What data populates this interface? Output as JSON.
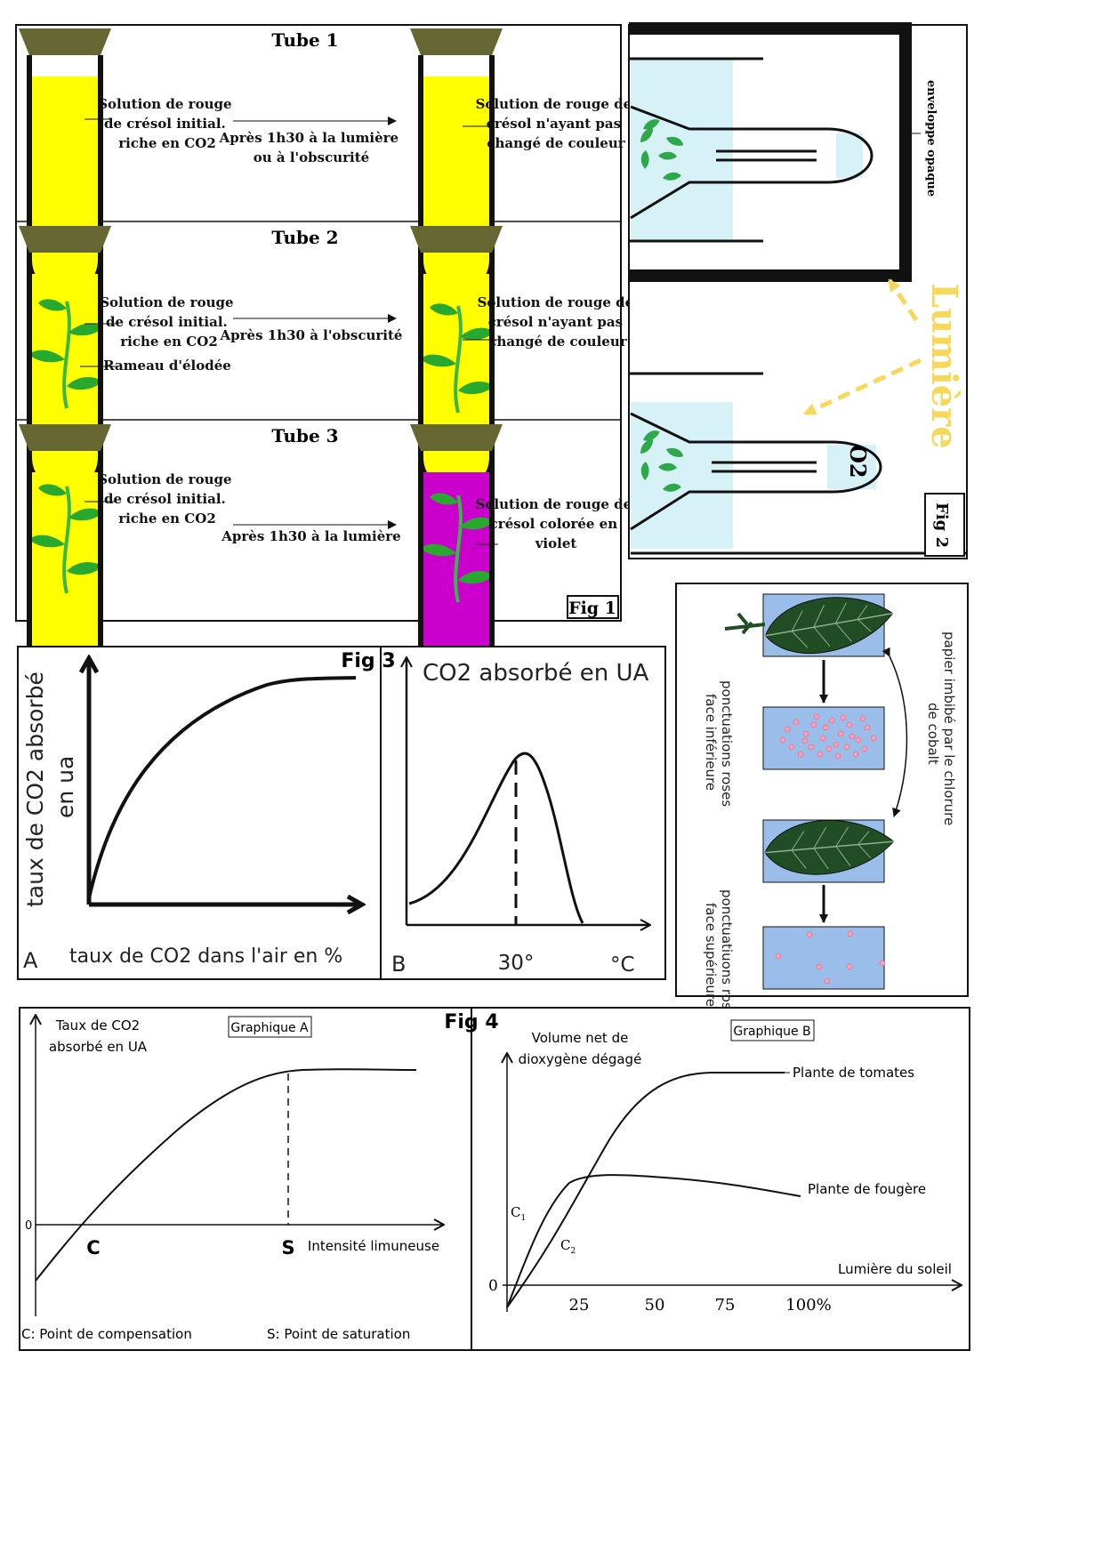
{
  "fig1": {
    "label": "Fig 1",
    "tube1": {
      "title": "Tube 1",
      "left_label": [
        "Solution de rouge",
        "de crésol initial.",
        "riche en CO2"
      ],
      "middle_label": [
        "Après 1h30 à la lumière",
        "ou à l'obscurité"
      ],
      "right_label": [
        "Solution de rouge de",
        "crésol n'ayant pas",
        "changé de couleur"
      ]
    },
    "tube2": {
      "title": "Tube 2",
      "left_label": [
        "Solution de rouge",
        "de crésol initial.",
        "riche en CO2"
      ],
      "leaf_label": "Rameau d'élodée",
      "middle_label": [
        "Après 1h30 à l'obscurité"
      ],
      "right_label": [
        "Solution de rouge de",
        "crésol n'ayant pas",
        "changé de couleur"
      ]
    },
    "tube3": {
      "title": "Tube 3",
      "left_label": [
        "Solution de rouge",
        "de crésol initial.",
        "riche en CO2"
      ],
      "middle_label": [
        "Après 1h30 à la lumière"
      ],
      "right_label": [
        "Solution de rouge de",
        "crésol colorée en",
        "violet"
      ]
    }
  },
  "fig2": {
    "label": "Fig 2",
    "opaque_label": "enveloppe opaque",
    "light_label": "Lumière",
    "gas_label": "O2"
  },
  "fig3": {
    "label": "Fig 3",
    "graphA": {
      "ylabel_line1": "taux de CO2 absorbé",
      "ylabel_line2": "en ua",
      "xlabel": "taux de CO2 dans l'air en %",
      "panel": "A"
    },
    "graphB": {
      "ylabel": "CO2 absorbé en UA",
      "tick": "30°",
      "unit": "°C",
      "panel": "B"
    }
  },
  "leaf_fig": {
    "bottom_label_1": "ponctuations roses",
    "bottom_label_2": "face inférieure",
    "top_label_1": "ponctuatiuons roses",
    "top_label_2": "face supérieure",
    "paper_label_1": "papier imbibé par le chlorure",
    "paper_label_2": "de cobalt"
  },
  "fig4": {
    "label": "Fig 4",
    "graphA": {
      "title": "Graphique A",
      "ylabel_1": "Taux de CO2",
      "ylabel_2": "absorbé en UA",
      "zero": "0",
      "point_c": "C",
      "point_s": "S",
      "xlabel": "Intensité limuneuse",
      "legend_c": "C: Point de compensation",
      "legend_s": "S: Point de saturation"
    },
    "graphB": {
      "title": "Graphique B",
      "ylabel_1": "Volume net de",
      "ylabel_2": "dioxygène dégagé",
      "series_1": "Plante de tomates",
      "series_2": "Plante de fougère",
      "xlabel": "Lumière du soleil",
      "zero": "0",
      "c1": "C",
      "c1_sub": "1",
      "c2": "C",
      "c2_sub": "2",
      "ticks": [
        "25",
        "50",
        "75",
        "100%"
      ]
    }
  }
}
